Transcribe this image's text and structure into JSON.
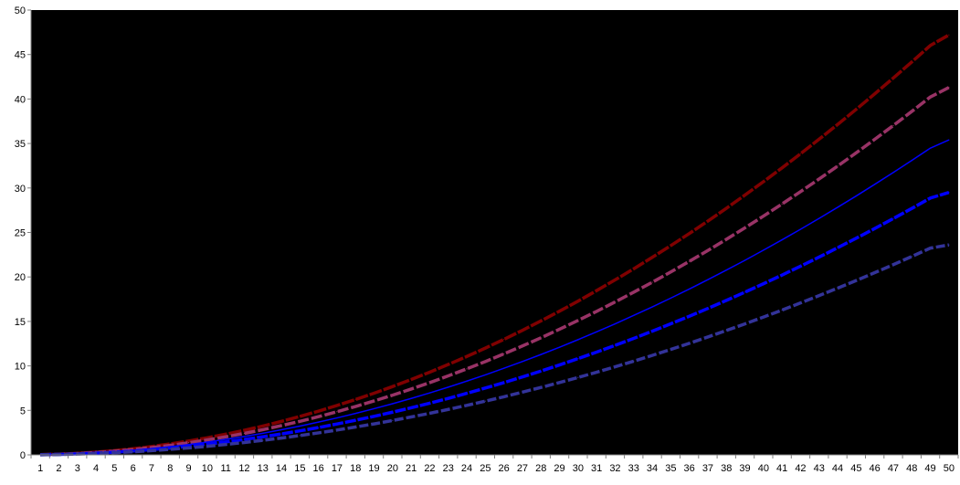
{
  "chart_data": {
    "type": "line",
    "title": "",
    "xlabel": "",
    "ylabel": "",
    "categories": [
      "1",
      "2",
      "3",
      "4",
      "5",
      "6",
      "7",
      "8",
      "9",
      "10",
      "11",
      "12",
      "13",
      "14",
      "15",
      "16",
      "17",
      "18",
      "19",
      "20",
      "21",
      "22",
      "23",
      "24",
      "25",
      "26",
      "27",
      "28",
      "29",
      "30",
      "31",
      "32",
      "33",
      "34",
      "35",
      "36",
      "37",
      "38",
      "39",
      "40",
      "41",
      "42",
      "43",
      "44",
      "45",
      "46",
      "47",
      "48",
      "49",
      "50"
    ],
    "ylim": [
      0,
      50
    ],
    "yticks": [
      0,
      5,
      10,
      15,
      20,
      25,
      30,
      35,
      40,
      45,
      50
    ],
    "grid": false,
    "legend": "none",
    "plot_background": "#000000",
    "page_background": "#ffffff",
    "series": [
      {
        "color": "#800000",
        "width": 3.5,
        "dash": "14,2",
        "values": [
          0.02,
          0.08,
          0.17,
          0.31,
          0.48,
          0.69,
          0.94,
          1.23,
          1.56,
          1.92,
          2.32,
          2.76,
          3.24,
          3.76,
          4.32,
          4.91,
          5.55,
          6.22,
          6.93,
          7.68,
          8.47,
          9.29,
          10.16,
          11.06,
          12.0,
          12.98,
          14.0,
          15.06,
          16.15,
          17.28,
          18.46,
          19.67,
          20.91,
          22.2,
          23.52,
          24.88,
          26.28,
          27.72,
          29.2,
          30.71,
          32.26,
          33.85,
          35.48,
          37.14,
          38.84,
          40.58,
          42.36,
          44.17,
          46.02,
          47.2
        ]
      },
      {
        "color": "#993366",
        "width": 3.5,
        "dash": "12,3",
        "values": [
          0.02,
          0.07,
          0.15,
          0.27,
          0.42,
          0.6,
          0.82,
          1.07,
          1.36,
          1.68,
          2.03,
          2.41,
          2.83,
          3.29,
          3.77,
          4.29,
          4.85,
          5.44,
          6.06,
          6.71,
          7.4,
          8.12,
          8.88,
          9.67,
          10.49,
          11.35,
          12.24,
          13.16,
          14.12,
          15.11,
          16.13,
          17.19,
          18.28,
          19.4,
          20.56,
          21.75,
          22.97,
          24.23,
          25.52,
          26.84,
          28.2,
          29.59,
          31.01,
          32.46,
          33.95,
          35.47,
          37.02,
          38.61,
          40.23,
          41.3
        ]
      },
      {
        "color": "#0000ff",
        "width": 1.5,
        "dash": "",
        "values": [
          0.01,
          0.06,
          0.13,
          0.23,
          0.36,
          0.52,
          0.7,
          0.92,
          1.16,
          1.44,
          1.74,
          2.07,
          2.43,
          2.82,
          3.23,
          3.68,
          4.15,
          4.66,
          5.19,
          5.75,
          6.34,
          6.96,
          7.61,
          8.29,
          8.99,
          9.73,
          10.49,
          11.28,
          12.1,
          12.95,
          13.83,
          14.73,
          15.67,
          16.63,
          17.62,
          18.64,
          19.69,
          20.77,
          21.87,
          23.01,
          24.17,
          25.36,
          26.58,
          27.83,
          29.1,
          30.41,
          31.74,
          33.1,
          34.48,
          35.4
        ]
      },
      {
        "color": "#0000ff",
        "width": 3.5,
        "dash": "12,2",
        "values": [
          0.01,
          0.05,
          0.11,
          0.19,
          0.3,
          0.43,
          0.59,
          0.77,
          0.97,
          1.2,
          1.45,
          1.73,
          2.03,
          2.35,
          2.7,
          3.07,
          3.47,
          3.89,
          4.33,
          4.8,
          5.29,
          5.81,
          6.35,
          6.92,
          7.51,
          8.12,
          8.76,
          9.42,
          10.11,
          10.82,
          11.55,
          12.31,
          13.09,
          13.9,
          14.73,
          15.58,
          16.46,
          17.36,
          18.29,
          19.24,
          20.21,
          21.21,
          22.23,
          23.28,
          24.35,
          25.44,
          26.56,
          27.7,
          28.87,
          29.5
        ]
      },
      {
        "color": "#333399",
        "width": 3.5,
        "dash": "10,3",
        "values": [
          0.01,
          0.04,
          0.09,
          0.16,
          0.24,
          0.35,
          0.47,
          0.62,
          0.78,
          0.96,
          1.17,
          1.39,
          1.63,
          1.89,
          2.17,
          2.47,
          2.79,
          3.13,
          3.48,
          3.86,
          4.26,
          4.67,
          5.11,
          5.56,
          6.04,
          6.53,
          7.05,
          7.58,
          8.13,
          8.7,
          9.29,
          9.9,
          10.53,
          11.18,
          11.85,
          12.54,
          13.25,
          13.98,
          14.72,
          15.49,
          16.27,
          17.08,
          17.9,
          18.74,
          19.6,
          20.48,
          21.38,
          22.3,
          23.24,
          23.6
        ]
      }
    ]
  }
}
